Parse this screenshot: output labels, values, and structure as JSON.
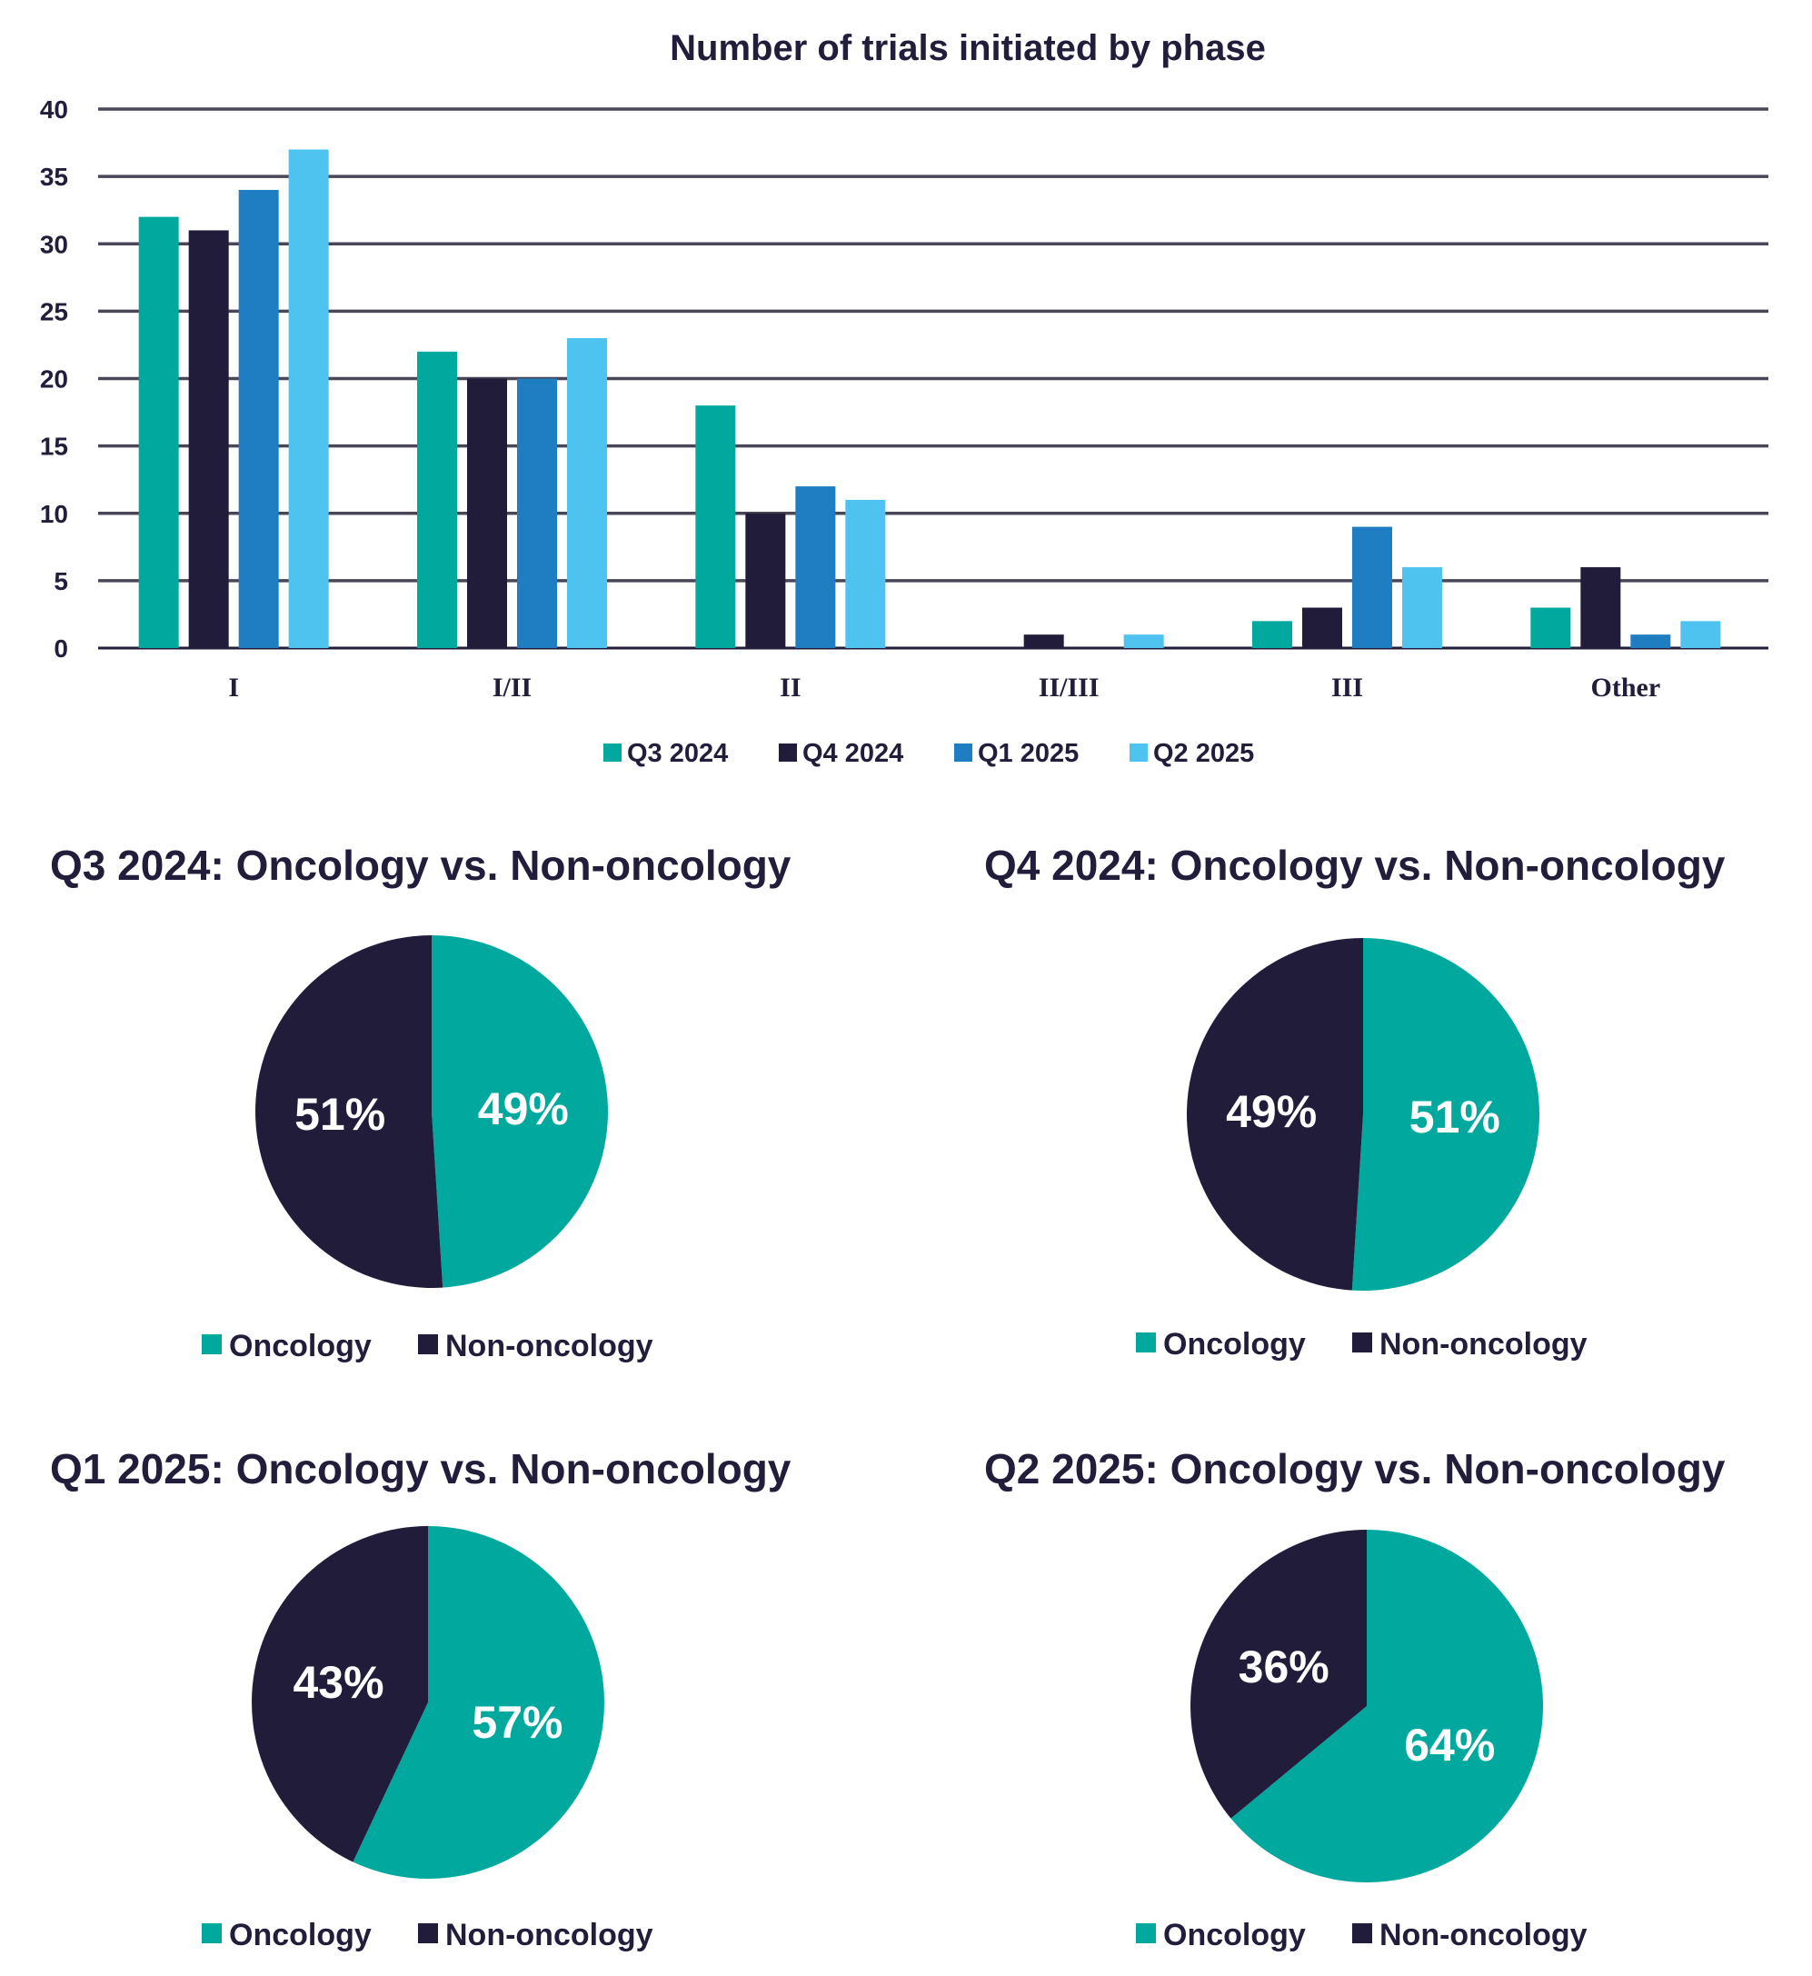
{
  "colors": {
    "q3_2024": "#00A89D",
    "q4_2024": "#211C3A",
    "q1_2025": "#1F7EC2",
    "q2_2025": "#4FC3F0",
    "oncology": "#00A89D",
    "non_oncology": "#211C3A",
    "grid": "#4a4658"
  },
  "chart_data": [
    {
      "type": "bar",
      "title": "Number of trials initiated by phase",
      "xlabel": "",
      "ylabel": "",
      "categories": [
        "I",
        "I/II",
        "II",
        "II/III",
        "III",
        "Other"
      ],
      "yticks": [
        "0",
        "5",
        "10",
        "15",
        "20",
        "25",
        "30",
        "35",
        "40"
      ],
      "ylim": [
        0,
        40
      ],
      "grid": true,
      "legend_placement": "bottom",
      "series": [
        {
          "name": "Q3 2024",
          "values": [
            32,
            22,
            18,
            0,
            2,
            3
          ]
        },
        {
          "name": "Q4 2024",
          "values": [
            31,
            20,
            10,
            1,
            3,
            6
          ]
        },
        {
          "name": "Q1 2025",
          "values": [
            34,
            20,
            12,
            0,
            9,
            1
          ]
        },
        {
          "name": "Q2 2025",
          "values": [
            37,
            23,
            11,
            1,
            6,
            2
          ]
        }
      ]
    },
    {
      "type": "pie",
      "title": "Q3 2024: Oncology vs. Non-oncology",
      "legend_placement": "bottom",
      "slices": [
        {
          "name": "Oncology",
          "value": 49,
          "label": "49%"
        },
        {
          "name": "Non-oncology",
          "value": 51,
          "label": "51%"
        }
      ]
    },
    {
      "type": "pie",
      "title": "Q4 2024: Oncology vs. Non-oncology",
      "legend_placement": "bottom",
      "slices": [
        {
          "name": "Oncology",
          "value": 51,
          "label": "51%"
        },
        {
          "name": "Non-oncology",
          "value": 49,
          "label": "49%"
        }
      ]
    },
    {
      "type": "pie",
      "title": "Q1 2025: Oncology vs. Non-oncology",
      "legend_placement": "bottom",
      "slices": [
        {
          "name": "Oncology",
          "value": 57,
          "label": "57%"
        },
        {
          "name": "Non-oncology",
          "value": 43,
          "label": "43%"
        }
      ]
    },
    {
      "type": "pie",
      "title": "Q2 2025: Oncology vs. Non-oncology",
      "legend_placement": "bottom",
      "slices": [
        {
          "name": "Oncology",
          "value": 64,
          "label": "64%"
        },
        {
          "name": "Non-oncology",
          "value": 36,
          "label": "36%"
        }
      ]
    }
  ]
}
